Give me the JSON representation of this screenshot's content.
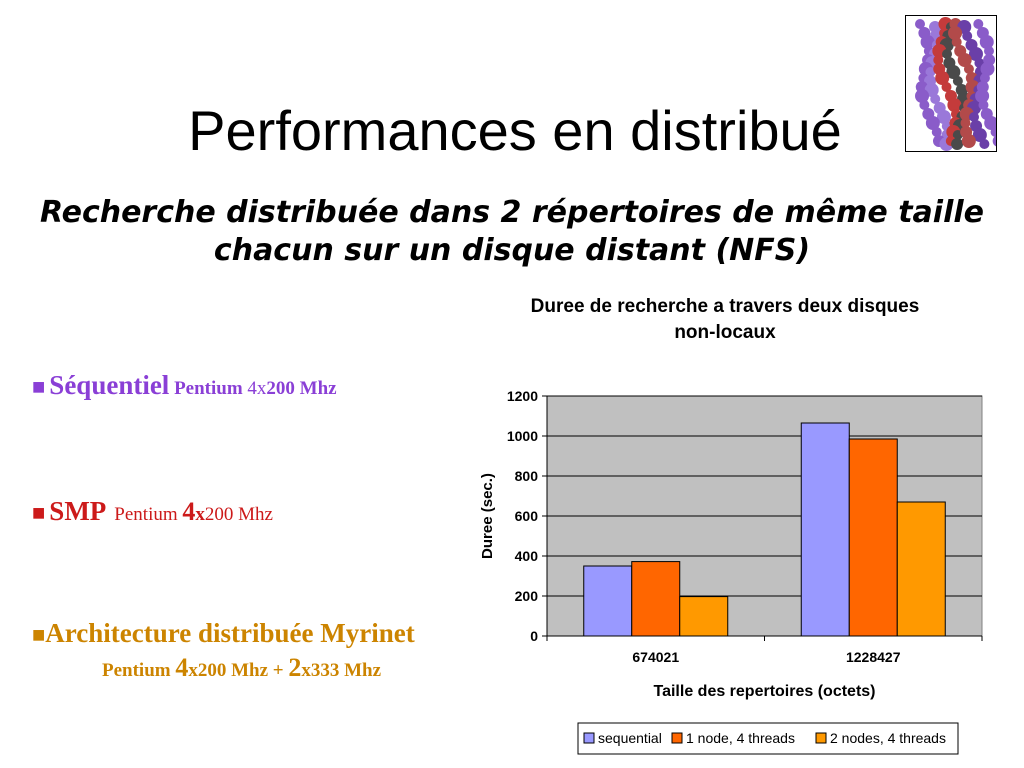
{
  "slide": {
    "title": "Performances en distribué",
    "subtitle_line1": "Recherche distribuée dans 2 répertoires de même taille",
    "subtitle_line2": "chacun sur un disque distant (NFS)"
  },
  "bullets": {
    "b1": {
      "bullet": "■",
      "label": "Séquentiel",
      "p1": " Pentium ",
      "p2": "4",
      "p3": "x",
      "p4": "200 Mhz"
    },
    "b2": {
      "bullet": "■",
      "label": "SMP",
      "p1": "Pentium ",
      "p2": "4",
      "p3": "x",
      "p4": "200 Mhz"
    },
    "b3": {
      "bullet": "■",
      "label": "Architecture distribuée Myrinet",
      "p1": "Pentium ",
      "p2": "4",
      "p3": "x200 Mhz + ",
      "p4": "2",
      "p5": "x333 Mhz"
    }
  },
  "colors": {
    "sequential": "#9999ff",
    "node4": "#ff6600",
    "nodes2": "#ff9900",
    "b1": "#8a3fd6",
    "b2": "#cc1a1a",
    "b3": "#cc8400"
  },
  "chart_data": {
    "type": "bar",
    "title_line1": "Duree de recherche a travers deux disques",
    "title_line2": "non-locaux",
    "xlabel": "Taille des repertoires (octets)",
    "ylabel": "Duree (sec.)",
    "categories": [
      "674021",
      "1228427"
    ],
    "series": [
      {
        "name": "sequential",
        "values": [
          350,
          1065
        ],
        "color": "#9999ff"
      },
      {
        "name": "1 node, 4 threads",
        "values": [
          372,
          985
        ],
        "color": "#ff6600"
      },
      {
        "name": "2 nodes, 4 threads",
        "values": [
          197,
          670
        ],
        "color": "#ff9900"
      }
    ],
    "ylim": [
      0,
      1200
    ],
    "yticks": [
      0,
      200,
      400,
      600,
      800,
      1000,
      1200
    ],
    "grid": true,
    "legend": "bottom"
  }
}
